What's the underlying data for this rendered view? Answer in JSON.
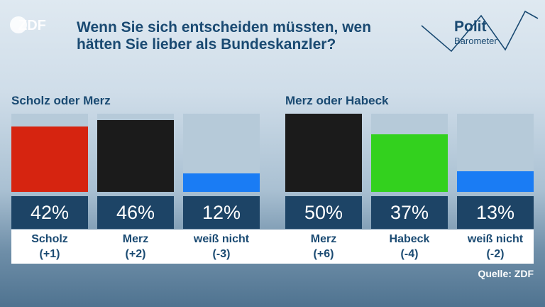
{
  "brand": {
    "logo_text": "ZDF"
  },
  "headline": "Wenn Sie sich entscheiden müssten, wen hätten Sie lieber als Bundeskanzler?",
  "politbarometer": {
    "line1": "Polit",
    "line2": "Barometer"
  },
  "source": "Quelle: ZDF",
  "colors": {
    "scholz": "#d62410",
    "merz": "#1b1b1b",
    "weiss_nicht": "#1a7cf4",
    "habeck": "#33d11e",
    "track": "#b6cad9",
    "label_bg": "#1d4466"
  },
  "chart_data": [
    {
      "type": "bar",
      "title": "Scholz oder Merz",
      "ylim": [
        0,
        50
      ],
      "bars": [
        {
          "name": "Scholz",
          "change": "(+1)",
          "value": 42,
          "pct_label": "42%",
          "color": "#d62410"
        },
        {
          "name": "Merz",
          "change": "(+2)",
          "value": 46,
          "pct_label": "46%",
          "color": "#1b1b1b"
        },
        {
          "name": "weiß nicht",
          "change": "(-3)",
          "value": 12,
          "pct_label": "12%",
          "color": "#1a7cf4"
        }
      ]
    },
    {
      "type": "bar",
      "title": "Merz oder Habeck",
      "ylim": [
        0,
        50
      ],
      "bars": [
        {
          "name": "Merz",
          "change": "(+6)",
          "value": 50,
          "pct_label": "50%",
          "color": "#1b1b1b"
        },
        {
          "name": "Habeck",
          "change": "(-4)",
          "value": 37,
          "pct_label": "37%",
          "color": "#33d11e"
        },
        {
          "name": "weiß nicht",
          "change": "(-2)",
          "value": 13,
          "pct_label": "13%",
          "color": "#1a7cf4"
        }
      ]
    }
  ]
}
